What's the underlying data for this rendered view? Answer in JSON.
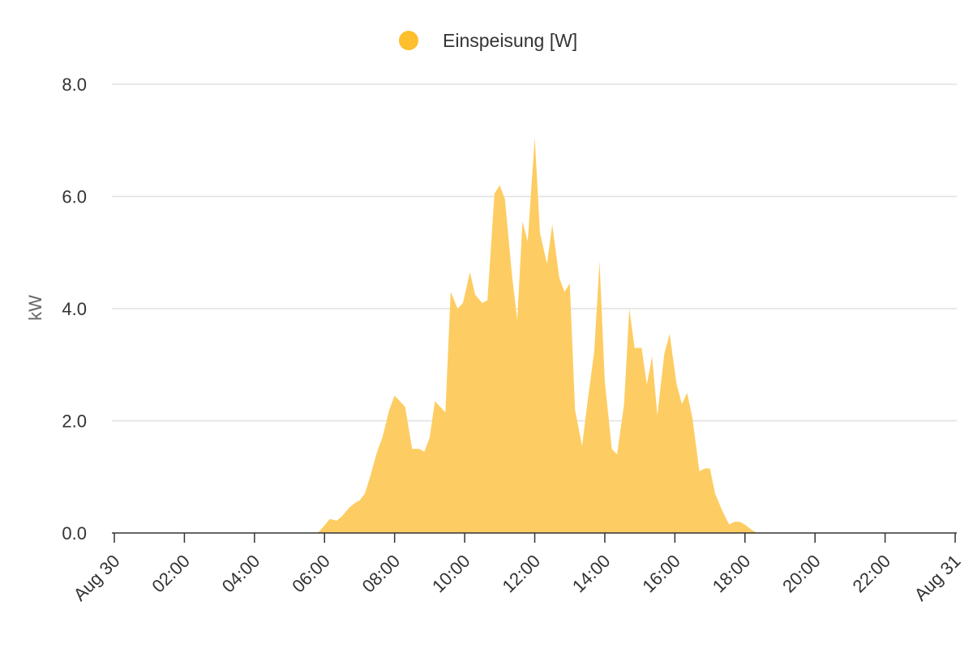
{
  "colors": {
    "series": "#fdbf2d",
    "area_fill": "#fdcd63",
    "grid": "#e0e0e0",
    "axis": "#333333",
    "text": "#333333",
    "axis_title": "#666666"
  },
  "chart_data": {
    "type": "area",
    "title": "",
    "xlabel": "",
    "ylabel": "kW",
    "ylim": [
      0,
      8
    ],
    "yticks": [
      "0.0",
      "2.0",
      "4.0",
      "6.0",
      "8.0"
    ],
    "xlim": [
      0,
      24
    ],
    "xtick_labels": [
      "Aug 30",
      "02:00",
      "04:00",
      "06:00",
      "08:00",
      "10:00",
      "12:00",
      "14:00",
      "16:00",
      "18:00",
      "20:00",
      "22:00",
      "Aug 31"
    ],
    "legend_position": "top-center",
    "grid": true,
    "series": [
      {
        "name": "Einspeisung [W]",
        "x_hours": [
          0,
          5.8,
          5.95,
          6.15,
          6.35,
          6.5,
          6.7,
          6.9,
          7.0,
          7.15,
          7.3,
          7.5,
          7.65,
          7.85,
          8.0,
          8.3,
          8.5,
          8.7,
          8.85,
          9.0,
          9.15,
          9.45,
          9.6,
          9.8,
          9.95,
          10.15,
          10.3,
          10.5,
          10.65,
          10.85,
          11.0,
          11.15,
          11.35,
          11.5,
          11.65,
          11.8,
          12.0,
          12.15,
          12.35,
          12.5,
          12.7,
          12.85,
          13.0,
          13.15,
          13.35,
          13.5,
          13.7,
          13.85,
          14.0,
          14.2,
          14.35,
          14.55,
          14.7,
          14.85,
          15.05,
          15.2,
          15.35,
          15.5,
          15.7,
          15.85,
          16.05,
          16.2,
          16.35,
          16.5,
          16.7,
          16.85,
          17.0,
          17.15,
          17.35,
          17.55,
          17.7,
          17.85,
          18.0,
          18.2,
          18.35,
          18.5,
          24
        ],
        "values": [
          0,
          0,
          0.1,
          0.25,
          0.22,
          0.3,
          0.45,
          0.55,
          0.58,
          0.7,
          1.0,
          1.45,
          1.7,
          2.2,
          2.45,
          2.25,
          1.5,
          1.5,
          1.45,
          1.7,
          2.35,
          2.15,
          4.3,
          4.0,
          4.1,
          4.65,
          4.25,
          4.1,
          4.15,
          6.05,
          6.2,
          5.95,
          4.6,
          3.8,
          5.55,
          5.2,
          7.05,
          5.35,
          4.8,
          5.5,
          4.55,
          4.3,
          4.45,
          2.2,
          1.55,
          2.3,
          3.25,
          4.85,
          2.7,
          1.5,
          1.4,
          2.3,
          4.0,
          3.3,
          3.3,
          2.65,
          3.15,
          2.1,
          3.2,
          3.55,
          2.65,
          2.3,
          2.5,
          2.05,
          1.1,
          1.15,
          1.15,
          0.7,
          0.4,
          0.15,
          0.2,
          0.2,
          0.15,
          0.05,
          0,
          0,
          0
        ]
      }
    ]
  }
}
